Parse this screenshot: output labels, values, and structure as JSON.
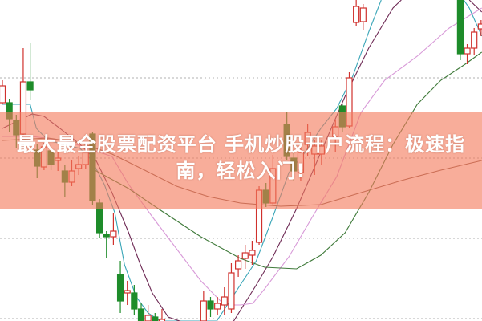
{
  "overlay": {
    "title_line1": "最大最全股票配资平台 手机炒股开户流程：极速指",
    "title_line2": "南，轻松入门!"
  },
  "chart_data": {
    "type": "candlestick",
    "title": "",
    "xlabel": "",
    "ylabel": "",
    "ylim": [
      0,
      400
    ],
    "grid": "horizontal dotted",
    "colors": {
      "up": "#d0312d",
      "down": "#1e8c2a",
      "grid": "#b0b0b0",
      "banner": "#f37a5c"
    },
    "candles": [
      {
        "i": 0,
        "o": 272,
        "c": 293,
        "h": 300,
        "l": 270
      },
      {
        "i": 1,
        "o": 272,
        "c": 252,
        "h": 277,
        "l": 235
      },
      {
        "i": 2,
        "o": 250,
        "c": 232,
        "h": 257,
        "l": 215
      },
      {
        "i": 3,
        "o": 233,
        "c": 298,
        "h": 340,
        "l": 230
      },
      {
        "i": 4,
        "o": 298,
        "c": 288,
        "h": 347,
        "l": 275
      },
      {
        "i": 5,
        "o": 213,
        "c": 193,
        "h": 220,
        "l": 178
      },
      {
        "i": 6,
        "o": 192,
        "c": 217,
        "h": 222,
        "l": 188
      },
      {
        "i": 7,
        "o": 212,
        "c": 195,
        "h": 215,
        "l": 188
      },
      {
        "i": 8,
        "o": 200,
        "c": 203,
        "h": 210,
        "l": 187
      },
      {
        "i": 9,
        "o": 187,
        "c": 173,
        "h": 195,
        "l": 155
      },
      {
        "i": 10,
        "o": 173,
        "c": 187,
        "h": 200,
        "l": 168
      },
      {
        "i": 11,
        "o": 190,
        "c": 195,
        "h": 205,
        "l": 182
      },
      {
        "i": 12,
        "o": 195,
        "c": 210,
        "h": 217,
        "l": 190
      },
      {
        "i": 13,
        "o": 233,
        "c": 150,
        "h": 235,
        "l": 145
      },
      {
        "i": 14,
        "o": 147,
        "c": 110,
        "h": 152,
        "l": 103
      },
      {
        "i": 15,
        "o": 108,
        "c": 105,
        "h": 112,
        "l": 78
      },
      {
        "i": 16,
        "o": 105,
        "c": 112,
        "h": 135,
        "l": 95
      },
      {
        "i": 17,
        "o": 58,
        "c": 25,
        "h": 75,
        "l": 10
      },
      {
        "i": 18,
        "o": 35,
        "c": 38,
        "h": 50,
        "l": 20
      },
      {
        "i": 19,
        "o": 35,
        "c": 15,
        "h": 45,
        "l": 8
      },
      {
        "i": 20,
        "o": 15,
        "c": 0,
        "h": 22,
        "l": -10
      },
      {
        "i": 21,
        "o": 0,
        "c": 7,
        "h": 20,
        "l": -10
      },
      {
        "i": 22,
        "o": 5,
        "c": 0,
        "h": 10,
        "l": -10
      },
      {
        "i": 23,
        "o": -5,
        "c": 2,
        "h": 15,
        "l": -10
      },
      {
        "i": 29,
        "o": 0,
        "c": 25,
        "h": 38,
        "l": -10
      },
      {
        "i": 30,
        "o": 25,
        "c": 15,
        "h": 30,
        "l": 5
      },
      {
        "i": 31,
        "o": 15,
        "c": 22,
        "h": 30,
        "l": 8
      },
      {
        "i": 32,
        "o": 20,
        "c": 30,
        "h": 42,
        "l": 8
      },
      {
        "i": 33,
        "o": 15,
        "c": 60,
        "h": 72,
        "l": 10
      },
      {
        "i": 34,
        "o": 65,
        "c": 75,
        "h": 82,
        "l": 55
      },
      {
        "i": 35,
        "o": 78,
        "c": 85,
        "h": 95,
        "l": 65
      },
      {
        "i": 36,
        "o": 82,
        "c": 88,
        "h": 100,
        "l": 70
      },
      {
        "i": 37,
        "o": 98,
        "c": 163,
        "h": 168,
        "l": 95
      },
      {
        "i": 38,
        "o": 163,
        "c": 147,
        "h": 172,
        "l": 142
      },
      {
        "i": 39,
        "o": 147,
        "c": 190,
        "h": 207,
        "l": 145
      },
      {
        "i": 41,
        "o": 245,
        "c": 205,
        "h": 260,
        "l": 200
      },
      {
        "i": 42,
        "o": 203,
        "c": 187,
        "h": 210,
        "l": 175
      },
      {
        "i": 43,
        "o": 185,
        "c": 210,
        "h": 220,
        "l": 175
      },
      {
        "i": 44,
        "o": 220,
        "c": 235,
        "h": 245,
        "l": 205
      },
      {
        "i": 45,
        "o": 208,
        "c": 218,
        "h": 225,
        "l": 182
      },
      {
        "i": 46,
        "o": 208,
        "c": 218,
        "h": 225,
        "l": 195
      },
      {
        "i": 48,
        "o": 230,
        "c": 242,
        "h": 250,
        "l": 210
      },
      {
        "i": 49,
        "o": 268,
        "c": 242,
        "h": 270,
        "l": 235
      },
      {
        "i": 50,
        "o": 243,
        "c": 303,
        "h": 310,
        "l": 240
      },
      {
        "i": 51,
        "o": 372,
        "c": 392,
        "h": 400,
        "l": 368
      },
      {
        "i": 52,
        "o": 373,
        "c": 390,
        "h": 395,
        "l": 362
      },
      {
        "i": 66,
        "o": 400,
        "c": 333,
        "h": 405,
        "l": 325
      },
      {
        "i": 67,
        "o": 333,
        "c": 340,
        "h": 345,
        "l": 320
      },
      {
        "i": 68,
        "o": 340,
        "c": 360,
        "h": 365,
        "l": 332
      },
      {
        "i": 69,
        "o": 364,
        "c": 370,
        "h": 375,
        "l": 355
      }
    ],
    "moving_averages": [
      {
        "color": "#3aa6b8",
        "points": [
          [
            0,
            270
          ],
          [
            2,
            270
          ],
          [
            4,
            270
          ],
          [
            4.9,
            240
          ],
          [
            6.6,
            225
          ],
          [
            8.9,
            220
          ],
          [
            11.2,
            215
          ],
          [
            12.9,
            200
          ],
          [
            14.7,
            170
          ],
          [
            16.2,
            135
          ],
          [
            17.6,
            70
          ],
          [
            19.3,
            30
          ],
          [
            21,
            10
          ],
          [
            22.8,
            0
          ],
          [
            30.9,
            0
          ],
          [
            34.3,
            45
          ],
          [
            36.6,
            75
          ],
          [
            39,
            130
          ],
          [
            41.3,
            185
          ],
          [
            43.6,
            210
          ],
          [
            45.9,
            240
          ],
          [
            48.2,
            265
          ],
          [
            50.5,
            305
          ],
          [
            52.8,
            360
          ],
          [
            54.6,
            400
          ]
        ]
      },
      {
        "color": "#3aa6b8",
        "points": [
          [
            66.5,
            400
          ],
          [
            67.3,
            390
          ],
          [
            69.1,
            355
          ]
        ]
      },
      {
        "color": "#6e2a55",
        "points": [
          [
            0,
            240
          ],
          [
            4.3,
            258
          ],
          [
            6,
            255
          ],
          [
            8.3,
            240
          ],
          [
            11.2,
            220
          ],
          [
            13.5,
            200
          ],
          [
            15.8,
            160
          ],
          [
            18.2,
            110
          ],
          [
            19.9,
            70
          ],
          [
            21.6,
            35
          ],
          [
            23.9,
            5
          ],
          [
            26.2,
            -2
          ],
          [
            33.2,
            -2
          ],
          [
            36.6,
            45
          ],
          [
            39,
            80
          ],
          [
            42.4,
            140
          ],
          [
            45.9,
            210
          ],
          [
            49.4,
            280
          ],
          [
            52.8,
            340
          ],
          [
            56.3,
            390
          ],
          [
            57.5,
            400
          ]
        ]
      },
      {
        "color": "#6e2a55",
        "points": [
          [
            67.3,
            400
          ],
          [
            69.1,
            385
          ]
        ]
      },
      {
        "color": "#d89ad8",
        "points": [
          [
            0,
            230
          ],
          [
            4.3,
            230
          ],
          [
            8.9,
            225
          ],
          [
            12.4,
            215
          ],
          [
            15.8,
            205
          ],
          [
            18.2,
            170
          ],
          [
            21.6,
            130
          ],
          [
            25.1,
            90
          ],
          [
            28.6,
            50
          ],
          [
            32,
            20
          ],
          [
            34.3,
            20
          ],
          [
            36.1,
            22
          ],
          [
            37.8,
            40
          ],
          [
            41.3,
            80
          ],
          [
            44.7,
            130
          ],
          [
            48.2,
            180
          ],
          [
            51.7,
            260
          ],
          [
            55.1,
            300
          ],
          [
            59.8,
            330
          ],
          [
            64.4,
            365
          ],
          [
            69.1,
            390
          ]
        ]
      },
      {
        "color": "#8a5a4a",
        "points": [
          [
            0,
            225
          ],
          [
            6.6,
            228
          ],
          [
            11.2,
            222
          ],
          [
            15.8,
            208
          ],
          [
            20.5,
            188
          ],
          [
            25.1,
            168
          ],
          [
            29.7,
            155
          ],
          [
            34.3,
            147
          ],
          [
            40.1,
            143
          ],
          [
            45.9,
            145
          ],
          [
            51.7,
            160
          ],
          [
            57.5,
            175
          ],
          [
            63.2,
            188
          ],
          [
            69.1,
            200
          ]
        ]
      },
      {
        "color": "#3f7a3a",
        "points": [
          [
            12.9,
            190
          ],
          [
            18.2,
            165
          ],
          [
            22.8,
            138
          ],
          [
            28.6,
            105
          ],
          [
            34.3,
            78
          ],
          [
            37.8,
            67
          ],
          [
            42.4,
            65
          ],
          [
            45.9,
            82
          ],
          [
            49.4,
            110
          ],
          [
            52.8,
            160
          ],
          [
            56.3,
            220
          ],
          [
            59.8,
            270
          ],
          [
            63.2,
            300
          ],
          [
            66.7,
            320
          ],
          [
            69.1,
            335
          ]
        ]
      }
    ],
    "gridlines": [
      303,
      203,
      103,
      3
    ]
  }
}
